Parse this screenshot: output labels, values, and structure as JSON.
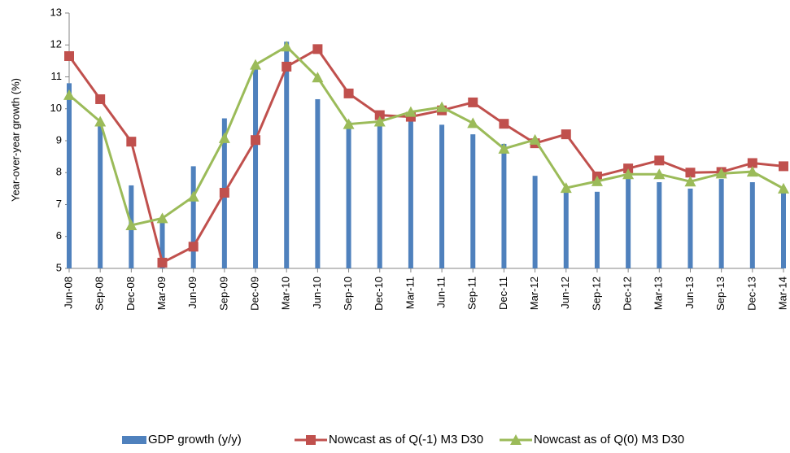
{
  "chart_data": {
    "type": "bar-line",
    "y_label": "Year-over-year  growth (%)",
    "categories": [
      "Jun-08",
      "Sep-08",
      "Dec-08",
      "Mar-09",
      "Jun-09",
      "Sep-09",
      "Dec-09",
      "Mar-10",
      "Jun-10",
      "Sep-10",
      "Dec-10",
      "Mar-11",
      "Jun-11",
      "Sep-11",
      "Dec-11",
      "Mar-12",
      "Jun-12",
      "Sep-12",
      "Dec-12",
      "Mar-13",
      "Jun-13",
      "Sep-13",
      "Dec-13",
      "Mar-14"
    ],
    "series": [
      {
        "name": "GDP growth (y/y)",
        "kind": "bar",
        "color": "#4f81bd",
        "values": [
          10.8,
          9.6,
          7.6,
          6.5,
          8.2,
          9.7,
          11.3,
          12.1,
          10.3,
          9.6,
          9.8,
          9.7,
          9.5,
          9.2,
          8.9,
          7.9,
          7.5,
          7.4,
          7.9,
          7.7,
          7.5,
          7.8,
          7.7,
          7.4
        ]
      },
      {
        "name": "Nowcast as of Q(-1) M3 D30",
        "kind": "line",
        "marker": "square",
        "color": "#c0504d",
        "values": [
          11.65,
          10.3,
          8.97,
          5.18,
          5.68,
          7.37,
          9.02,
          11.32,
          11.87,
          10.48,
          9.8,
          9.75,
          9.95,
          10.2,
          9.53,
          8.92,
          9.2,
          7.88,
          8.13,
          8.38,
          8.0,
          8.02,
          8.3,
          8.2
        ]
      },
      {
        "name": "Nowcast as of Q(0) M3 D30",
        "kind": "line",
        "marker": "triangle",
        "color": "#9bbb59",
        "values": [
          10.43,
          9.6,
          6.35,
          6.57,
          7.25,
          9.08,
          11.38,
          11.95,
          10.98,
          9.52,
          9.6,
          9.9,
          10.05,
          9.55,
          8.75,
          9.03,
          7.52,
          7.73,
          7.95,
          7.95,
          7.72,
          7.97,
          8.03,
          7.5
        ]
      }
    ],
    "ylim": [
      5,
      13
    ],
    "yticks": [
      5,
      6,
      7,
      8,
      9,
      10,
      11,
      12,
      13
    ],
    "legend": "bottom"
  }
}
